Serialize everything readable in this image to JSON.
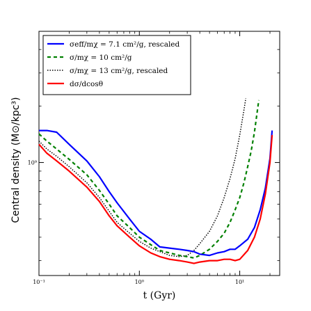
{
  "chart_data": {
    "type": "line",
    "xlabel": "t (Gyr)",
    "ylabel": "Central density (M⊙/kpc³)",
    "xscale": "log",
    "yscale": "log",
    "xlim": [
      0.1,
      25
    ],
    "ylim": [
      250000000,
      5000000000
    ],
    "x_tick_labels": [
      "10⁻¹",
      "10⁰",
      "10¹"
    ],
    "y_tick_labels": [
      "10⁹"
    ],
    "legend_position": "top-left",
    "grid": false,
    "series": [
      {
        "name": "σeff/mχ = 7.1 cm²/g, rescaled",
        "color": "#0000ff",
        "style": "solid",
        "x": [
          0.1,
          0.12,
          0.15,
          0.2,
          0.3,
          0.4,
          0.5,
          0.6,
          0.8,
          1.0,
          1.3,
          1.6,
          2.0,
          2.5,
          3.0,
          3.5,
          4.0,
          5.0,
          6.0,
          7.0,
          8.0,
          9.0,
          10.0,
          12.0,
          14.0,
          16.0,
          18.0,
          20.0,
          21.0
        ],
        "y": [
          1480000000,
          1480000000,
          1450000000,
          1250000000,
          1020000000,
          840000000,
          700000000,
          610000000,
          500000000,
          430000000,
          390000000,
          355000000,
          350000000,
          345000000,
          340000000,
          335000000,
          325000000,
          320000000,
          330000000,
          335000000,
          345000000,
          345000000,
          360000000,
          390000000,
          450000000,
          560000000,
          730000000,
          1050000000,
          1480000000
        ]
      },
      {
        "name": "σ/mχ = 10 cm²/g",
        "color": "#008000",
        "style": "dashed",
        "x": [
          0.1,
          0.12,
          0.15,
          0.2,
          0.3,
          0.4,
          0.5,
          0.6,
          0.8,
          1.0,
          1.3,
          1.6,
          2.0,
          2.5,
          3.0,
          3.5,
          4.0,
          5.0,
          6.0,
          7.0,
          8.0,
          9.0,
          10.0,
          11.0,
          12.0,
          13.0,
          14.0,
          15.0,
          15.5
        ],
        "y": [
          1420000000,
          1300000000,
          1180000000,
          1040000000,
          860000000,
          710000000,
          600000000,
          520000000,
          450000000,
          400000000,
          365000000,
          340000000,
          330000000,
          320000000,
          315000000,
          310000000,
          320000000,
          345000000,
          380000000,
          420000000,
          480000000,
          560000000,
          650000000,
          780000000,
          950000000,
          1150000000,
          1450000000,
          1900000000,
          2150000000
        ]
      },
      {
        "name": "σ/mχ = 13 cm²/g, rescaled",
        "color": "#000000",
        "style": "dotted",
        "x": [
          0.1,
          0.12,
          0.15,
          0.2,
          0.3,
          0.4,
          0.5,
          0.6,
          0.8,
          1.0,
          1.3,
          1.6,
          2.0,
          2.5,
          3.0,
          3.5,
          4.0,
          5.0,
          6.0,
          7.0,
          8.0,
          9.0,
          10.0,
          11.0,
          11.5
        ],
        "y": [
          1300000000,
          1180000000,
          1080000000,
          950000000,
          780000000,
          650000000,
          550000000,
          480000000,
          420000000,
          380000000,
          350000000,
          335000000,
          320000000,
          315000000,
          320000000,
          340000000,
          370000000,
          430000000,
          520000000,
          650000000,
          820000000,
          1050000000,
          1400000000,
          1900000000,
          2200000000
        ]
      },
      {
        "name": "dσ/dcosθ",
        "color": "#ff0000",
        "style": "solid",
        "x": [
          0.1,
          0.12,
          0.15,
          0.2,
          0.3,
          0.4,
          0.5,
          0.6,
          0.8,
          1.0,
          1.3,
          1.6,
          2.0,
          2.5,
          3.0,
          3.5,
          4.0,
          5.0,
          6.0,
          7.0,
          8.0,
          9.0,
          10.0,
          12.0,
          14.0,
          16.0,
          18.0,
          20.0,
          21.0
        ],
        "y": [
          1250000000,
          1120000000,
          1020000000,
          900000000,
          740000000,
          620000000,
          520000000,
          460000000,
          400000000,
          360000000,
          330000000,
          315000000,
          305000000,
          300000000,
          295000000,
          290000000,
          295000000,
          300000000,
          300000000,
          305000000,
          305000000,
          300000000,
          305000000,
          340000000,
          400000000,
          500000000,
          680000000,
          1000000000,
          1400000000
        ]
      }
    ]
  }
}
